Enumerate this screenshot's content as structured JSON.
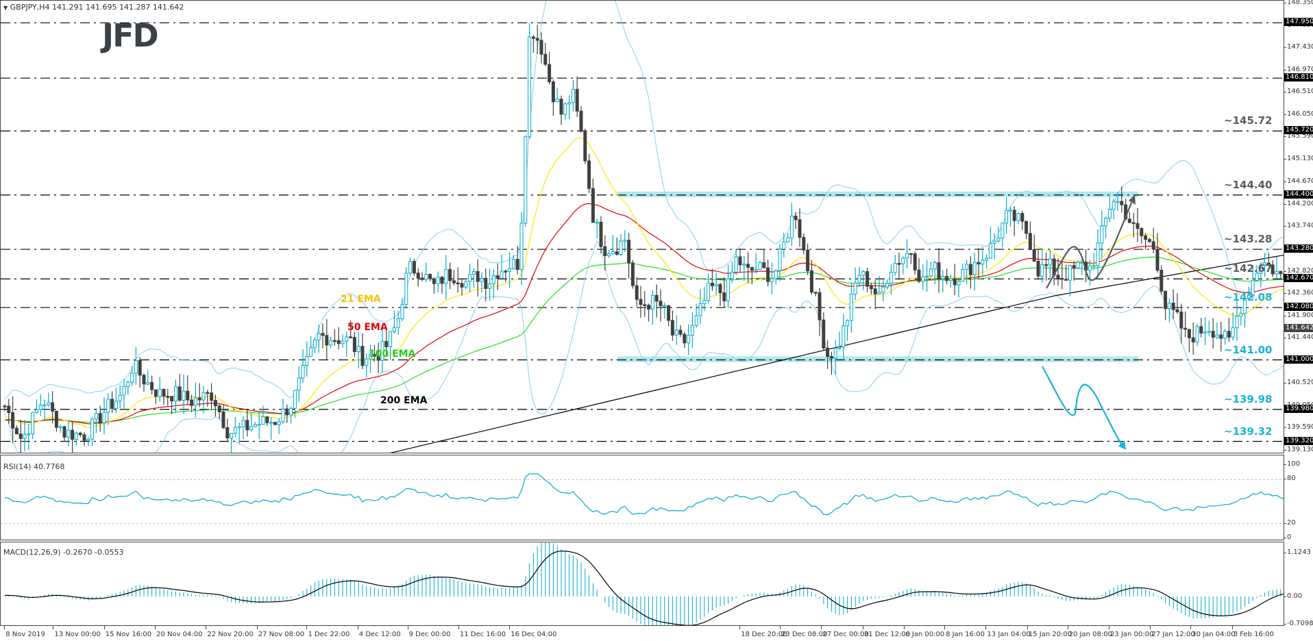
{
  "header": {
    "symbol_line": "GBPJPY,H4  141.291 141.695 141.287 141.642",
    "logo": "JFD"
  },
  "colors": {
    "bull": "#00aacc",
    "bear": "#404040",
    "ema21": "#ffe600",
    "ema50": "#e00000",
    "ema100": "#22dd22",
    "ema200": "#000000",
    "bands": "#87ceeb",
    "zone": "#aee8ee",
    "cyan_text": "#1ab3d8",
    "gray_text": "#555c63"
  },
  "price_axis": {
    "ticks": [
      "148.350",
      "147.890",
      "147.430",
      "146.970",
      "146.510",
      "146.050",
      "145.590",
      "145.130",
      "144.670",
      "144.200",
      "143.740",
      "143.280",
      "142.820",
      "142.360",
      "141.900",
      "141.440",
      "140.980",
      "140.520",
      "140.050",
      "139.590",
      "139.130"
    ],
    "level_boxes": [
      "147.950",
      "146.810",
      "145.720",
      "144.400",
      "143.280",
      "142.670",
      "142.080",
      "141.000",
      "139.980",
      "139.320"
    ],
    "current_price": "141.642"
  },
  "levels": [
    {
      "price": 147.95,
      "label": ""
    },
    {
      "price": 146.81,
      "label": ""
    },
    {
      "price": 145.72,
      "label": "~145.72",
      "color": "gray"
    },
    {
      "price": 144.4,
      "label": "~144.40",
      "color": "gray",
      "zone": true
    },
    {
      "price": 143.28,
      "label": "~143.28",
      "color": "gray"
    },
    {
      "price": 142.67,
      "label": "~142.67",
      "color": "gray"
    },
    {
      "price": 142.08,
      "label": "~142.08",
      "color": "cyan"
    },
    {
      "price": 141.0,
      "label": "~141.00",
      "color": "cyan",
      "zone": true
    },
    {
      "price": 139.98,
      "label": "~139.98",
      "color": "cyan"
    },
    {
      "price": 139.32,
      "label": "~139.32",
      "color": "cyan"
    }
  ],
  "ema_labels": {
    "ema21": "21 EMA",
    "ema50": "50 EMA",
    "ema100": "100 EMA",
    "ema200": "200 EMA"
  },
  "rsi": {
    "title": "RSI(14) 40.7768",
    "axis": [
      "100",
      "80",
      "20",
      "0"
    ]
  },
  "macd": {
    "title": "MACD(12,26,9) -0.2670 -0.0553",
    "axis": [
      "1.1243",
      "0.00",
      "-0.7098"
    ]
  },
  "time_axis": [
    {
      "label": "8 Nov 2019",
      "x": 4
    },
    {
      "label": "13 Nov 00:00",
      "x": 50
    },
    {
      "label": "15 Nov 16:00",
      "x": 98
    },
    {
      "label": "20 Nov 04:00",
      "x": 146
    },
    {
      "label": "22 Nov 20:00",
      "x": 194
    },
    {
      "label": "27 Nov 08:00",
      "x": 242
    },
    {
      "label": "1 Dec 22:00",
      "x": 289
    },
    {
      "label": "4 Dec 12:00",
      "x": 337
    },
    {
      "label": "9 Dec 00:00",
      "x": 384
    },
    {
      "label": "11 Dec 16:00",
      "x": 432
    },
    {
      "label": "16 Dec 04:00",
      "x": 480
    },
    {
      "label": "18 Dec 20:00",
      "x": 697
    },
    {
      "label": "23 Dec 08:00",
      "x": 735
    },
    {
      "label": "27 Dec 00:00",
      "x": 774
    },
    {
      "label": "31 Dec 12:00",
      "x": 813
    },
    {
      "label": "6 Jan 00:00",
      "x": 852
    },
    {
      "label": "8 Jan 16:00",
      "x": 890
    },
    {
      "label": "13 Jan 04:00",
      "x": 929
    },
    {
      "label": "15 Jan 20:00",
      "x": 968
    },
    {
      "label": "20 Jan 08:00",
      "x": 1006
    },
    {
      "label": "23 Jan 00:00",
      "x": 1045
    },
    {
      "label": "27 Jan 12:00",
      "x": 1084
    },
    {
      "label": "30 Jan 04:00",
      "x": 1122
    },
    {
      "label": "3 Feb 16:00",
      "x": 1161
    }
  ],
  "chart_data": {
    "type": "candlestick",
    "title": "GBPJPY,H4",
    "ohlc_last": {
      "open": 141.291,
      "high": 141.695,
      "low": 141.287,
      "close": 141.642
    },
    "ylim": [
      139.13,
      148.35
    ],
    "close_path": [
      [
        4,
        140.05
      ],
      [
        20,
        139.35
      ],
      [
        40,
        140.2
      ],
      [
        60,
        139.5
      ],
      [
        80,
        139.45
      ],
      [
        100,
        140.0
      ],
      [
        115,
        140.3
      ],
      [
        125,
        140.9
      ],
      [
        135,
        140.6
      ],
      [
        150,
        140.3
      ],
      [
        165,
        140.3
      ],
      [
        180,
        140.15
      ],
      [
        200,
        140.3
      ],
      [
        215,
        139.5
      ],
      [
        230,
        139.6
      ],
      [
        245,
        139.7
      ],
      [
        260,
        139.75
      ],
      [
        275,
        140.1
      ],
      [
        285,
        140.7
      ],
      [
        300,
        141.5
      ],
      [
        315,
        141.45
      ],
      [
        330,
        141.4
      ],
      [
        340,
        141.05
      ],
      [
        355,
        141.1
      ],
      [
        365,
        141.3
      ],
      [
        375,
        141.8
      ],
      [
        385,
        142.9
      ],
      [
        395,
        142.85
      ],
      [
        410,
        142.5
      ],
      [
        420,
        142.75
      ],
      [
        430,
        142.75
      ],
      [
        440,
        142.6
      ],
      [
        450,
        142.75
      ],
      [
        460,
        142.6
      ],
      [
        470,
        142.85
      ],
      [
        480,
        142.95
      ],
      [
        490,
        143.0
      ],
      [
        500,
        147.9
      ],
      [
        510,
        147.5
      ],
      [
        520,
        146.6
      ],
      [
        530,
        146.05
      ],
      [
        540,
        146.5
      ],
      [
        550,
        145.5
      ],
      [
        560,
        143.9
      ],
      [
        570,
        143.3
      ],
      [
        580,
        143.3
      ],
      [
        590,
        143.5
      ],
      [
        600,
        142.1
      ],
      [
        615,
        142.2
      ],
      [
        625,
        142.1
      ],
      [
        635,
        141.5
      ],
      [
        645,
        141.35
      ],
      [
        655,
        141.7
      ],
      [
        670,
        142.5
      ],
      [
        685,
        142.35
      ],
      [
        695,
        143.1
      ],
      [
        705,
        142.8
      ],
      [
        715,
        142.9
      ],
      [
        730,
        142.7
      ],
      [
        740,
        143.4
      ],
      [
        750,
        144.1
      ],
      [
        760,
        143.1
      ],
      [
        770,
        142.2
      ],
      [
        780,
        141.1
      ],
      [
        790,
        141.2
      ],
      [
        800,
        141.9
      ],
      [
        810,
        142.8
      ],
      [
        820,
        142.6
      ],
      [
        830,
        142.25
      ],
      [
        840,
        142.9
      ],
      [
        850,
        143.1
      ],
      [
        860,
        143.25
      ],
      [
        870,
        142.6
      ],
      [
        880,
        142.9
      ],
      [
        890,
        142.75
      ],
      [
        900,
        142.7
      ],
      [
        910,
        142.8
      ],
      [
        920,
        143.0
      ],
      [
        930,
        143.15
      ],
      [
        940,
        143.5
      ],
      [
        950,
        143.95
      ],
      [
        960,
        143.9
      ],
      [
        970,
        143.6
      ],
      [
        980,
        142.85
      ],
      [
        990,
        142.95
      ],
      [
        1000,
        142.7
      ],
      [
        1010,
        142.8
      ],
      [
        1020,
        142.95
      ],
      [
        1030,
        142.9
      ],
      [
        1040,
        143.6
      ],
      [
        1050,
        144.35
      ],
      [
        1060,
        144.15
      ],
      [
        1070,
        143.7
      ],
      [
        1080,
        143.5
      ],
      [
        1090,
        143.3
      ],
      [
        1100,
        142.1
      ],
      [
        1110,
        141.9
      ],
      [
        1120,
        141.45
      ],
      [
        1130,
        141.55
      ],
      [
        1140,
        141.7
      ],
      [
        1150,
        141.55
      ],
      [
        1160,
        141.35
      ],
      [
        1170,
        142.05
      ],
      [
        1180,
        142.5
      ],
      [
        1190,
        143.05
      ],
      [
        1200,
        142.9
      ],
      [
        1210,
        142.7
      ],
      [
        1216,
        142.6
      ],
      [
        1222,
        141.4
      ],
      [
        1228,
        141.1
      ],
      [
        1234,
        141.3
      ],
      [
        1240,
        141.64
      ]
    ],
    "indicators": [
      "EMA21",
      "EMA50",
      "EMA100",
      "EMA200",
      "Bollinger Bands",
      "RSI(14)",
      "MACD(12,26,9)"
    ],
    "rsi_last": 40.7768,
    "macd_last": {
      "main": -0.267,
      "signal": -0.0553
    }
  }
}
